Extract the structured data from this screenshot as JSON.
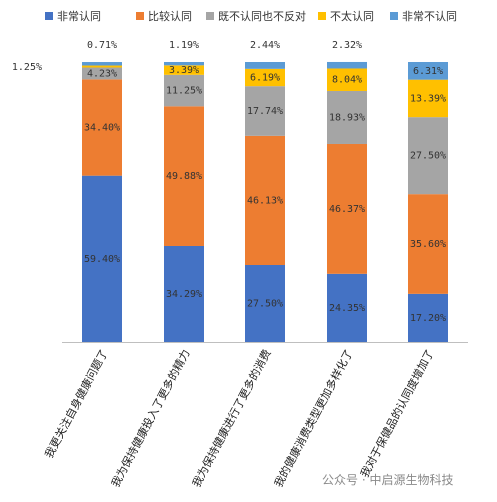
{
  "chart_data": {
    "type": "bar",
    "stacked": true,
    "percent": true,
    "ylim": [
      0,
      100
    ],
    "grid": false,
    "legend_position": "top",
    "categories": [
      "我更关注自身健康问题了",
      "我为保持健康投入了更多的精力",
      "我为保持健康进行了更多的消费",
      "我的健康消费类型更加多样化了",
      "我对于保健品的认同度增加了"
    ],
    "series": [
      {
        "name": "非常认同",
        "color": "#4472C4",
        "values": [
          59.4,
          34.29,
          27.5,
          24.35,
          17.2
        ],
        "labels": [
          "59.40%",
          "34.29%",
          "27.50%",
          "24.35%",
          "17.20%"
        ]
      },
      {
        "name": "比较认同",
        "color": "#ED7D31",
        "values": [
          34.4,
          49.88,
          46.13,
          46.37,
          35.6
        ],
        "labels": [
          "34.40%",
          "49.88%",
          "46.13%",
          "46.37%",
          "35.60%"
        ]
      },
      {
        "name": "既不认同也不反对",
        "color": "#A5A5A5",
        "values": [
          4.23,
          11.25,
          17.74,
          18.93,
          27.5
        ],
        "labels": [
          "4.23%",
          "11.25%",
          "17.74%",
          "18.93%",
          "27.50%"
        ]
      },
      {
        "name": "不太认同",
        "color": "#FFC000",
        "values": [
          0.71,
          3.39,
          6.19,
          8.04,
          13.39
        ],
        "labels": [
          "0.71%",
          "3.39%",
          "6.19%",
          "8.04%",
          "13.39%"
        ]
      },
      {
        "name": "非常不认同",
        "color": "#5B9BD5",
        "values": [
          1.25,
          1.19,
          2.44,
          2.32,
          6.31
        ],
        "labels": [
          "1.25%",
          "1.19%",
          "2.44%",
          "2.32%",
          "6.31%"
        ]
      }
    ]
  },
  "watermark": "公众号 · 中启源生物科技"
}
